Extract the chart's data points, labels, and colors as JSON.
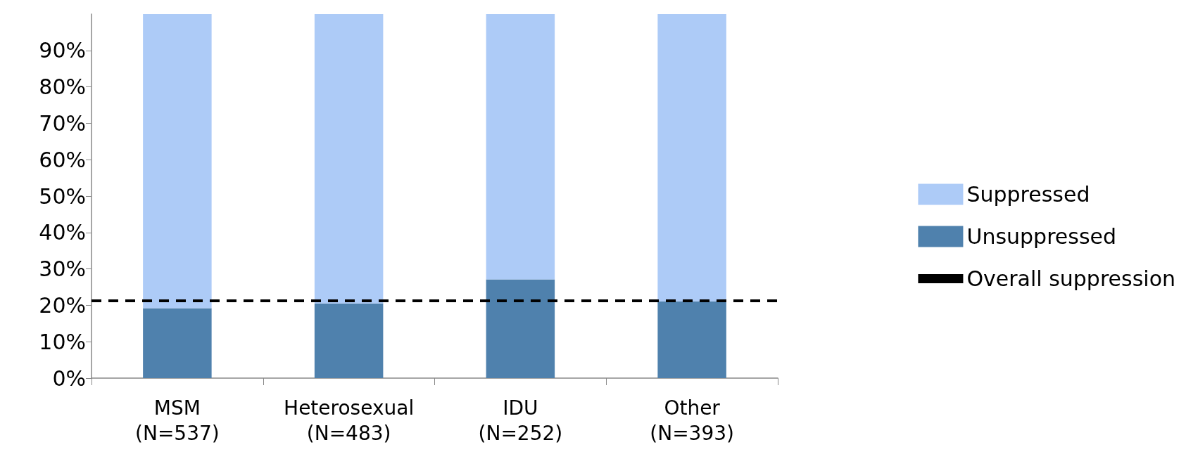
{
  "chart_data": {
    "type": "bar",
    "stacked": true,
    "categories": [
      "MSM\n(N=537)",
      "Heterosexual\n(N=483)",
      "IDU\n(N=252)",
      "Other\n(N=393)"
    ],
    "series": [
      {
        "name": "Unsuppressed",
        "color": "#4f81ad",
        "values": [
          19.2,
          20.5,
          27.1,
          21.1
        ]
      },
      {
        "name": "Suppressed",
        "color": "#adcbf7",
        "values": [
          80.8,
          79.5,
          72.9,
          78.9
        ]
      }
    ],
    "ref_lines": [
      {
        "axis": "y",
        "value": 21.3,
        "label": "Overall suppression",
        "color": "#000000",
        "line_style": "dashed"
      }
    ],
    "ylim": [
      0,
      100
    ],
    "yticks": [
      {
        "value": 0,
        "label": "0%"
      },
      {
        "value": 10,
        "label": "10%"
      },
      {
        "value": 20,
        "label": "20%"
      },
      {
        "value": 30,
        "label": "30%"
      },
      {
        "value": 40,
        "label": "40%"
      },
      {
        "value": 50,
        "label": "50%"
      },
      {
        "value": 60,
        "label": "60%"
      },
      {
        "value": 70,
        "label": "70%"
      },
      {
        "value": 80,
        "label": "80%"
      },
      {
        "value": 90,
        "label": "90%"
      }
    ],
    "grid": false,
    "legend": "right"
  }
}
